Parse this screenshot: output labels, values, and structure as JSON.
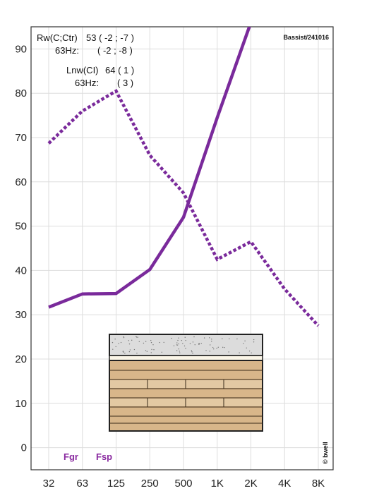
{
  "chart_data": {
    "type": "line",
    "x": [
      "32",
      "63",
      "125",
      "250",
      "500",
      "1K",
      "2K",
      "4K",
      "8K"
    ],
    "ylim": [
      -5,
      95
    ],
    "yticks": [
      0,
      10,
      20,
      30,
      40,
      50,
      60,
      70,
      80,
      90
    ],
    "grid": true,
    "series": [
      {
        "style": "solid",
        "values": [
          31.7,
          34.7,
          34.8,
          40.2,
          52,
          74.5,
          96,
          null,
          null
        ]
      },
      {
        "style": "dotted",
        "values": [
          68.7,
          76,
          80.5,
          66,
          57.5,
          42.5,
          46.5,
          35.8,
          27.5
        ]
      }
    ],
    "annotations": {
      "rw": "Rw(C;Ctr)",
      "rw_value": "53 ( -2 ; -7 )",
      "rw_63_label": "63Hz:",
      "rw_63_value": "( -2 ; -8 )",
      "lnw": "Lnw(CI)",
      "lnw_value": "64 ( 1 )",
      "lnw_63_label": "63Hz:",
      "lnw_63_value": "( 3 )",
      "source": "Bassist/241016",
      "fgr": "Fgr",
      "fsp": "Fsp",
      "credit": "© bwell"
    },
    "colors": {
      "series": "#7a2a9b",
      "grid": "#dddddd",
      "frame": "#333333",
      "concrete": "#dcdcdc",
      "timber": "#d8b68a",
      "timber_infill": "#e3c9a3"
    }
  }
}
